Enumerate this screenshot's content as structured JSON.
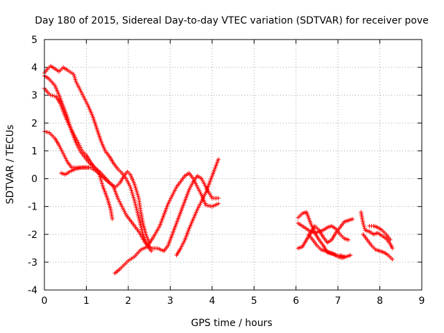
{
  "chart_data": {
    "type": "scatter",
    "title": "Day 180 of 2015, Sidereal Day-to-day VTEC variation (SDTVAR) for receiver pove",
    "xlabel": "GPS time / hours",
    "ylabel": "SDTVAR / TECUs",
    "xlim": [
      0,
      9
    ],
    "ylim": [
      -4,
      5
    ],
    "x_ticks": [
      "0",
      "1",
      "2",
      "3",
      "4",
      "5",
      "6",
      "7",
      "8",
      "9"
    ],
    "y_ticks": [
      "-4",
      "-3",
      "-2",
      "-1",
      "0",
      "1",
      "2",
      "3",
      "4",
      "5"
    ],
    "grid": true,
    "legend": "none",
    "marker": "+",
    "series_color": "#ff0000",
    "tracks": [
      {
        "points": [
          [
            0.0,
            3.8
          ],
          [
            0.08,
            3.95
          ],
          [
            0.15,
            4.05
          ],
          [
            0.25,
            3.95
          ],
          [
            0.35,
            3.85
          ],
          [
            0.45,
            4.0
          ],
          [
            0.55,
            3.9
          ],
          [
            0.7,
            3.75
          ],
          [
            0.75,
            3.5
          ],
          [
            0.85,
            3.2
          ],
          [
            0.95,
            2.9
          ],
          [
            1.05,
            2.6
          ],
          [
            1.15,
            2.25
          ],
          [
            1.25,
            1.8
          ],
          [
            1.35,
            1.35
          ],
          [
            1.45,
            1.0
          ],
          [
            1.55,
            0.8
          ],
          [
            1.65,
            0.55
          ],
          [
            1.75,
            0.35
          ],
          [
            1.85,
            0.2
          ],
          [
            1.95,
            0.0
          ],
          [
            2.05,
            -0.3
          ],
          [
            2.15,
            -0.8
          ],
          [
            2.25,
            -1.4
          ],
          [
            2.35,
            -2.0
          ],
          [
            2.45,
            -2.4
          ],
          [
            2.55,
            -2.6
          ]
        ]
      },
      {
        "points": [
          [
            0.0,
            3.7
          ],
          [
            0.1,
            3.6
          ],
          [
            0.25,
            3.35
          ],
          [
            0.35,
            3.0
          ],
          [
            0.45,
            2.6
          ],
          [
            0.55,
            2.2
          ],
          [
            0.65,
            1.7
          ],
          [
            0.75,
            1.3
          ],
          [
            0.85,
            1.0
          ],
          [
            0.95,
            0.8
          ],
          [
            1.05,
            0.6
          ],
          [
            1.2,
            0.4
          ],
          [
            1.35,
            0.2
          ],
          [
            1.5,
            -0.05
          ],
          [
            1.65,
            -0.3
          ],
          [
            1.75,
            -0.7
          ],
          [
            1.85,
            -1.0
          ],
          [
            1.95,
            -1.3
          ],
          [
            2.1,
            -1.6
          ],
          [
            2.25,
            -1.9
          ],
          [
            2.4,
            -2.3
          ],
          [
            2.55,
            -2.5
          ],
          [
            2.7,
            -2.5
          ],
          [
            2.85,
            -2.6
          ],
          [
            2.95,
            -2.4
          ],
          [
            3.05,
            -2.0
          ],
          [
            3.15,
            -1.6
          ],
          [
            3.25,
            -1.2
          ],
          [
            3.35,
            -0.8
          ],
          [
            3.45,
            -0.4
          ],
          [
            3.55,
            -0.1
          ],
          [
            3.65,
            0.1
          ],
          [
            3.75,
            0.0
          ],
          [
            3.85,
            -0.3
          ],
          [
            4.0,
            -0.7
          ],
          [
            4.15,
            -0.7
          ]
        ]
      },
      {
        "points": [
          [
            0.0,
            3.25
          ],
          [
            0.08,
            3.1
          ],
          [
            0.15,
            3.0
          ],
          [
            0.28,
            2.95
          ],
          [
            0.38,
            2.7
          ],
          [
            0.48,
            2.3
          ],
          [
            0.58,
            1.95
          ],
          [
            0.7,
            1.6
          ],
          [
            0.82,
            1.25
          ],
          [
            0.9,
            1.0
          ],
          [
            1.0,
            0.85
          ],
          [
            1.1,
            0.6
          ],
          [
            1.2,
            0.4
          ],
          [
            1.3,
            0.2
          ],
          [
            1.4,
            -0.3
          ],
          [
            1.5,
            -0.7
          ],
          [
            1.58,
            -1.1
          ],
          [
            1.62,
            -1.45
          ]
        ]
      },
      {
        "points": [
          [
            0.0,
            1.7
          ],
          [
            0.12,
            1.65
          ],
          [
            0.25,
            1.45
          ],
          [
            0.35,
            1.2
          ],
          [
            0.45,
            0.9
          ],
          [
            0.55,
            0.6
          ],
          [
            0.65,
            0.4
          ],
          [
            0.8,
            0.4
          ],
          [
            0.95,
            0.4
          ],
          [
            1.1,
            0.4
          ],
          [
            1.25,
            0.25
          ],
          [
            1.4,
            0.05
          ],
          [
            1.55,
            -0.15
          ],
          [
            1.7,
            -0.3
          ],
          [
            1.8,
            -0.15
          ],
          [
            1.9,
            0.1
          ],
          [
            1.98,
            0.25
          ],
          [
            2.05,
            0.15
          ],
          [
            2.15,
            -0.2
          ],
          [
            2.25,
            -0.7
          ],
          [
            2.3,
            -1.2
          ],
          [
            2.35,
            -1.6
          ],
          [
            2.42,
            -2.0
          ],
          [
            2.5,
            -2.3
          ]
        ]
      },
      {
        "points": [
          [
            0.4,
            0.2
          ],
          [
            0.5,
            0.15
          ],
          [
            0.6,
            0.25
          ],
          [
            0.75,
            0.35
          ],
          [
            0.9,
            0.4
          ],
          [
            1.05,
            0.4
          ]
        ]
      },
      {
        "points": [
          [
            1.68,
            -3.4
          ],
          [
            1.8,
            -3.25
          ],
          [
            1.9,
            -3.1
          ],
          [
            2.0,
            -2.95
          ],
          [
            2.15,
            -2.8
          ],
          [
            2.3,
            -2.55
          ],
          [
            2.45,
            -2.45
          ],
          [
            2.6,
            -2.1
          ],
          [
            2.75,
            -1.7
          ],
          [
            2.85,
            -1.3
          ],
          [
            2.95,
            -0.9
          ],
          [
            3.05,
            -0.6
          ],
          [
            3.15,
            -0.3
          ],
          [
            3.25,
            -0.1
          ],
          [
            3.35,
            0.1
          ],
          [
            3.45,
            0.2
          ],
          [
            3.55,
            0.0
          ],
          [
            3.65,
            -0.3
          ],
          [
            3.75,
            -0.6
          ],
          [
            3.85,
            -0.95
          ],
          [
            4.0,
            -1.0
          ],
          [
            4.15,
            -0.9
          ]
        ]
      },
      {
        "points": [
          [
            3.15,
            -2.75
          ],
          [
            3.25,
            -2.5
          ],
          [
            3.35,
            -2.2
          ],
          [
            3.45,
            -1.8
          ],
          [
            3.55,
            -1.45
          ],
          [
            3.65,
            -1.1
          ],
          [
            3.75,
            -0.8
          ],
          [
            3.85,
            -0.5
          ],
          [
            3.95,
            -0.1
          ],
          [
            4.05,
            0.3
          ],
          [
            4.15,
            0.7
          ]
        ]
      },
      {
        "points": [
          [
            6.05,
            -1.4
          ],
          [
            6.15,
            -1.25
          ],
          [
            6.25,
            -1.2
          ],
          [
            6.35,
            -1.6
          ],
          [
            6.45,
            -1.95
          ],
          [
            6.55,
            -2.2
          ],
          [
            6.65,
            -2.4
          ],
          [
            6.75,
            -2.65
          ],
          [
            6.85,
            -2.7
          ],
          [
            6.95,
            -2.75
          ],
          [
            7.05,
            -2.75
          ],
          [
            7.15,
            -2.8
          ]
        ]
      },
      {
        "points": [
          [
            6.05,
            -2.5
          ],
          [
            6.15,
            -2.45
          ],
          [
            6.25,
            -2.2
          ],
          [
            6.35,
            -1.95
          ],
          [
            6.45,
            -1.7
          ],
          [
            6.55,
            -1.85
          ],
          [
            6.65,
            -2.1
          ],
          [
            6.75,
            -2.3
          ],
          [
            6.85,
            -2.2
          ],
          [
            6.95,
            -1.95
          ],
          [
            7.05,
            -1.75
          ],
          [
            7.15,
            -1.55
          ],
          [
            7.25,
            -1.5
          ],
          [
            7.35,
            -1.45
          ]
        ]
      },
      {
        "points": [
          [
            6.05,
            -1.6
          ],
          [
            6.15,
            -1.7
          ],
          [
            6.25,
            -1.8
          ],
          [
            6.35,
            -1.9
          ],
          [
            6.45,
            -1.95
          ],
          [
            6.55,
            -1.9
          ],
          [
            6.65,
            -1.85
          ],
          [
            6.75,
            -1.75
          ],
          [
            6.85,
            -1.7
          ],
          [
            6.95,
            -1.8
          ],
          [
            7.05,
            -2.0
          ],
          [
            7.15,
            -2.15
          ],
          [
            7.25,
            -2.2
          ]
        ]
      },
      {
        "points": [
          [
            6.3,
            -2.0
          ],
          [
            6.4,
            -2.2
          ],
          [
            6.5,
            -2.4
          ],
          [
            6.6,
            -2.55
          ],
          [
            6.7,
            -2.6
          ],
          [
            6.8,
            -2.65
          ],
          [
            6.9,
            -2.7
          ],
          [
            7.0,
            -2.8
          ],
          [
            7.1,
            -2.85
          ],
          [
            7.2,
            -2.8
          ],
          [
            7.3,
            -2.75
          ]
        ]
      },
      {
        "points": [
          [
            7.55,
            -1.2
          ],
          [
            7.6,
            -1.6
          ],
          [
            7.65,
            -1.85
          ],
          [
            7.75,
            -1.9
          ],
          [
            7.85,
            -2.0
          ],
          [
            7.95,
            -1.95
          ],
          [
            8.05,
            -2.05
          ],
          [
            8.15,
            -2.15
          ],
          [
            8.25,
            -2.35
          ],
          [
            8.3,
            -2.5
          ]
        ]
      },
      {
        "points": [
          [
            7.6,
            -2.0
          ],
          [
            7.7,
            -2.2
          ],
          [
            7.8,
            -2.4
          ],
          [
            7.9,
            -2.55
          ],
          [
            8.0,
            -2.6
          ],
          [
            8.1,
            -2.65
          ],
          [
            8.2,
            -2.75
          ],
          [
            8.3,
            -2.9
          ]
        ]
      },
      {
        "points": [
          [
            7.75,
            -1.7
          ],
          [
            7.85,
            -1.7
          ],
          [
            7.95,
            -1.75
          ],
          [
            8.05,
            -1.85
          ],
          [
            8.15,
            -2.0
          ],
          [
            8.25,
            -2.2
          ]
        ]
      }
    ]
  }
}
